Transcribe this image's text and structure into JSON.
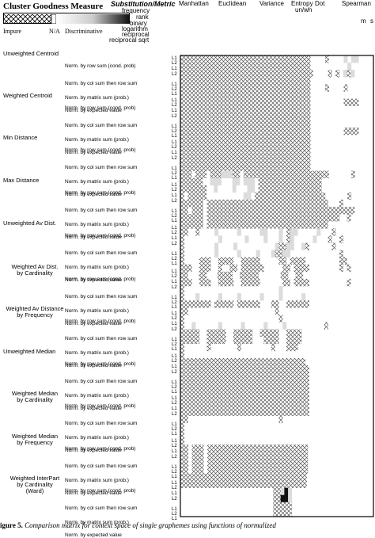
{
  "legend": {
    "title": "Cluster Goodness Measure",
    "impure": "Impure",
    "na": "N/A",
    "discriminative": "Discriminative"
  },
  "substitution": {
    "title": "Substitution/Metric",
    "items": [
      "frequency",
      "rank",
      "binary",
      "logarithm",
      "reciprocal",
      "reciprocal sqrt"
    ]
  },
  "columns": {
    "headers": [
      "Manhattan",
      "Euclidean",
      "Variance",
      "Entropy",
      "Dot",
      "Spearman"
    ],
    "entropy_sub": "un/wh",
    "spearman_sub": [
      "m",
      "s"
    ]
  },
  "groups": [
    {
      "label": "Unweighted Centroid",
      "align": "left"
    },
    {
      "label": "Weighted Centroid",
      "align": "left"
    },
    {
      "label": "Min Distance",
      "align": "left"
    },
    {
      "label": "Max Distance",
      "align": "left"
    },
    {
      "label": "Unweighted Av Dist.",
      "align": "left"
    },
    {
      "label": "Weighted Av Dist.\nby Cardinality",
      "align": "center"
    },
    {
      "label": "Weighted  Av Distance\nby Frequency",
      "align": "center"
    },
    {
      "label": "Unweighted Median",
      "align": "left"
    },
    {
      "label": "Weighted Median\nby Cardinality",
      "align": "center"
    },
    {
      "label": "Weighted Median\nby Frequency",
      "align": "center"
    },
    {
      "label": "Weighted InterPart\nby Cardinality\n(Ward)",
      "align": "center"
    }
  ],
  "norms": [
    "Norm. by row sum (cond. prob)",
    "Norm. by col  sum then row sum",
    "Norm. by matrix sum (prob.)",
    "Norm. by expected value"
  ],
  "l_marks": [
    "L1",
    "L2",
    "L1",
    "L2"
  ],
  "caption": {
    "label": "igure 5.",
    "text": " Comparison matrix for context space of single graphemes using functions of normalized"
  },
  "chart_data": {
    "type": "heatmap",
    "title": "Cluster Goodness Measure",
    "legend_scale": [
      "Impure",
      "N/A",
      "Discriminative"
    ],
    "x_labels": [
      "Manhattan",
      "Euclidean",
      "Variance",
      "Entropy",
      "Dot",
      "Spearman"
    ],
    "y_groups": [
      "Unweighted Centroid",
      "Weighted Centroid",
      "Min Distance",
      "Max Distance",
      "Unweighted Av Dist.",
      "Weighted Av Dist. by Cardinality",
      "Weighted  Av Distance by Frequency",
      "Unweighted Median",
      "Weighted Median by Cardinality",
      "Weighted Median by Frequency",
      "Weighted InterPart by Cardinality (Ward)"
    ],
    "y_normalizations": [
      "Norm. by row sum (cond. prob)",
      "Norm. by col  sum then row sum",
      "Norm. by matrix sum (prob.)",
      "Norm. by expected value"
    ],
    "cell_kinds": {
      "x": "impure",
      "g": "grey shaded",
      "w": "white / N/A",
      "d": "discriminative"
    },
    "rows": [
      "xxxxxxxxxxxxxxxxxxxxxxxxxxxxxxxxxxxwwwwxwwwwgwggwwww",
      "xxxxxxxxxxxxxxxxxxxxxxxxxxxxxxxxxxxwwwwwwwwwwgwwwwww",
      "xxxxxxxxxxxxxxxxxxxxxxxxxxxxxxxxxxxwwwwxwxwgxgwwwww",
      "xxxxxxxxxxxxxxxxxxxxxxxxxxxxxxxxxxxwwwwwwwwwwwwwwwww",
      "xxxxxxxxxxxxxxxxxxxxxxxxxxxxxxxxxxxwwwwxwwwwxwwwwwww",
      "xxxxxxxxxxxxxxxxxxxxxxxxxxxxxxxxxxxwwwwwwwwwwwwwwwww",
      "xxxxxxxxxxxxxxxxxxxxxxxxxxxxxxxxxxxwwwwwwwwwxxxxwwww",
      "xxxxxxxxxxxxxxxxxxxxxxxxxxxxxxxxxxxwwwwwwwwwwwwwwwww",
      "xxxxxxxxxxxxxxxxxxxxxxxxxxxxxxxxxxxwwwwwwwwwwwwwwwww",
      "xxxxxxxxxxxxxxxxxxxxxxxxxxxxxxxxxxxwwwwwwwwwwwwwwwww",
      "xxxxxxxxxxxxxxxxxxxxxxxxxxxxxxxxxxxwwwwwwwwwxxxxwwww",
      "xxxxxxxxxxxxxxxxxxxxxxxxxxxxxxxxxxxwwwwwwwwwwwwwwwww",
      "xxxxxxxxxxxxxxxxxxxxxxxxxxxxxxxxxxxwwwwwwwwwwwwwwwww",
      "xxxxxxxxxxxxxxxxxxxxxxxxxxxxxxxxxxxwwwwwwwwwwwwwwwww",
      "xxxxxxxxxxxxxxxxxxxxxxxxxxxxxxxxxxxwwwwwwwwwwwwwwwww",
      "xxxxxxxxxxxxxxxxxxxxxxxxxxxxxxxxxxxwwwwwwwwwwwwwwwww",
      "xxxwxxxwxxxgggxxwxxxxxxxxxxxxxxxxxxxxxxxwwwwwwxwwwww",
      "xxxxxxwwgggwwwggwgggwxxxxxxxxxxxxxxxxxwwwwwwwwwwwwww",
      "xxxxxxxwwgwwwwgwwwggwxxxxxxxxxxxxxxxxxwwwwwwwwwwwwww",
      "xwxxxxxwwwwwwwwwwggwxxxxxxxxxxxxxxxxxxxwwwwwwxwwwwww",
      "xxxxxxwxxxxxxxxxxxxxxxxxxxxxxxxxxxxxxxxwwwxwwwwwwww",
      "xxwxxxwxxxxxxxxxxxxxxxxxxxxxxxxxxxxxxxxxxxxxxxwwwww",
      "xxxxxxwxxxxxxxxxxxxxxxxxxxxxxxxxxxxxxxxxxxwwxwwwwww",
      "xxxxxxwxxxxxxxxxxxxxxxxxxxxxxxxxxxxxxxxwwwwwwwwwwww",
      "xxwwxwwwwgwwwwwgwwwwwggwwwgwxggwwwwwgwwwxwwwwwwwwww",
      "xwwwwwwwwwgwwwwwwgwwwwgwwwgwxgwwwwwgwwwxwwxwwwwwwww",
      "xwwwwwwwwgwwwwgwwwwwwwwwwgxxggwwgxwwwwwwxwwwwwwwwww",
      "xwwwwwwwwgwwwwwgwwwwgwwwgxxggwwwwwwwwwwwwwxwwwwwwww",
      "xwwwwxxxwwxxxxwwxxxxxwwwwwxxwxxxxwwwwwwwwwxxwwwwwww",
      "xxxwwxxxwwxwwxxwxxxxxxwwwwwxxwxxxxwwwwwwwwxwxwwwwww",
      "xxwwwxxwwwxxxxwwxxxxxwwwwwwxxwwxxwwwwwwwwwwwwwwwwwww",
      "xxxwwxxxwwxxxxwwxxxxxwwwwwwxxwxxxxwwwwwwwwwwxwwwwww",
      "xwwwwwwwwwwwwwwwwwwwwwwwwwgwwwwwwwwwwwwwwwwwwwwwwww",
      "xwwwgwwwwwgwwwwgwwwwwgwwwwgwwwwwgwwwwwwwwwwwwwwwwww",
      "xxxxxxxxwxxxxxwxxxxxxwwwxxwwxxxxxxwwwwwwwwwwwwwwwww",
      "xxwwwwwwwwwwwwwwwwwwwwwwwxwwwwwwwwwwwwwwwwwwwwwwwww",
      "xwwwwwwwwwwwwwwwwwwwwwwwwwxwwwwwwwwwwwwwwwwwwwwwwww",
      "xwwgwwwwwwgwwwwwgwwwwwgwwwwgwwwwwwwwwwxwwwwwwwwwwww",
      "xxxxxwwxxxxxwwxxxxxwwxxxxxwwxxxxwwwwwwwwwwwwwwwwwww",
      "xxxxxwwxxxxxwwxxxxxwwwxxxxwwxxxxwwwwwwwwwwwwwwwwwww",
      "xwwwwwwxwwwwwwwxwwwwwwwwxwwwxxxwwwwwwwwwwwwwwwwwwww",
      "xwwwwwwwwwwwwwwwwwwwwwwwwwwwwwwwwwwwwwwwwwwwwwwwwww",
      "xxxxxxxxxxxxxxxxxxxxxxxxxxxxxxxxxwwwwwwwwwwwwwwwwww",
      "xxxxxxxxxxxxxxxxxxxxxxxxxxxxxxxxxxwwwwwwwwwwwwwwwww",
      "xxxxxxxxxxxxxxxxxxxxxxxxxxxxxxxxxxwwwwwwwwwwwwwwwww",
      "xxxxxxxxxxxxxxxxxxxxxxxxxxxxxxxxxxwwwwwwwwwwwwwwwww",
      "xxxxxxxxxxxxxxxxxxxxxxxxxxxxxxxxxxwwwwwwwwwwwwwwwww",
      "xxxxxxxxxxxxxxxxxxxxxxxxxxxxxxxxxxwwwwwwwwwwwwwwwww",
      "xxxxxxxxxxxxxxxxxxxxxxxxxxxxxxxxxxwwwwwwwwwwwwwwwww",
      "xxxxxxxxxxxxxxxxxxxxxxxxxxxxxxxxxxwwwwwwwwwwwwwwwww",
      "xxwwwwwwwwwwwwwwwwwwwwwwwwxwwwwwwwwwwwwwwwwwwwwwwww",
      "xwwwwwwwwwwwwwwwwwwwwwwwwwwwwwwwwwwwwwwwwwwwwwwwwww",
      "xwwwwwwwwwwwwwwwwwwwwwwwwwwwwwwwwwwwwwwwwwwwwwwwwww",
      "xwwwwwwwwwwwwwwwwwwwwwwwwwwwwwwwwwwwwwwwwwwwwwwwwww",
      "xxwxxxwxxxxxxxxxxxxxxxxxxxxxxxxxxwwwwwwwwwwwwwwwww",
      "xxwxxxwxxxxxxxxxxxxxxxxxxxxxxxxxxwwwwwwwwwwwwwwwww",
      "xxwxxxwxxxxxxxxxxxxxxxxxxxxxxxxxxwwwwwwwwwwwwwwwww",
      "xxwxxxwxxxxxxxxxxxxxxxxxxxxxxxxxxwwwwwwwwwwwwwwwww",
      "xxxxxxxxxxxxxxxxxxxxxxxxxxxxxxxxxxwwwwwwwwwwwwwwwwww",
      "xxxxxxxxxxxxxxxxxxxxxxxxxxxxxxxxxxwwwwwwwwwwwwwwwwww",
      "wwwwwwwwwwwwwwwwwwwwwwwwwxxgdgwwwwwwwwwwwwwwwwwwwwww",
      "wwwwwwwwwwwwwwwwwwwwwwwwwxxddgwwwwwwwwwwwwwwwwwwwwww",
      "wwwwwwwwwwwwwwwwwwwwwwwwwxxxxxwwwwwwwwwwwwwwwwwwwwww",
      "wwwwwwwwwwwwwwwwwwwwwwwwwxxxxxwwwwwwwwwwwwwwwwwwwwww"
    ]
  }
}
